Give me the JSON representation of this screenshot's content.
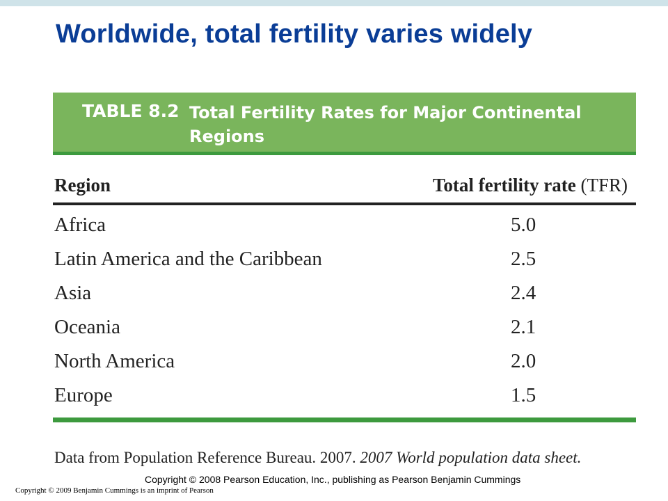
{
  "slide": {
    "title": "Worldwide, total fertility varies widely"
  },
  "table": {
    "number": "TABLE 8.2",
    "caption": "Total Fertility Rates for Major Continental Regions",
    "columns": {
      "region": "Region",
      "tfr_label": "Total fertility rate",
      "tfr_abbr": "(TFR)"
    },
    "rows": [
      {
        "region": "Africa",
        "tfr": "5.0"
      },
      {
        "region": "Latin America and the Caribbean",
        "tfr": "2.5"
      },
      {
        "region": "Asia",
        "tfr": "2.4"
      },
      {
        "region": "Oceania",
        "tfr": "2.1"
      },
      {
        "region": "North America",
        "tfr": "2.0"
      },
      {
        "region": "Europe",
        "tfr": "1.5"
      }
    ],
    "source_prefix": "Data from Population Reference Bureau. 2007.",
    "source_title": "2007 World population data sheet."
  },
  "footer": {
    "publisher_copyright": "Copyright © 2008 Pearson Education, Inc., publishing as Pearson Benjamin Cummings",
    "imprint_copyright": "Copyright © 2009 Benjamin Cummings is an imprint of Pearson"
  },
  "colors": {
    "title": "#0a3d96",
    "banner": "#7ab55c",
    "rule_green": "#3d9a3e",
    "top_bar": "#cfe3e9"
  }
}
